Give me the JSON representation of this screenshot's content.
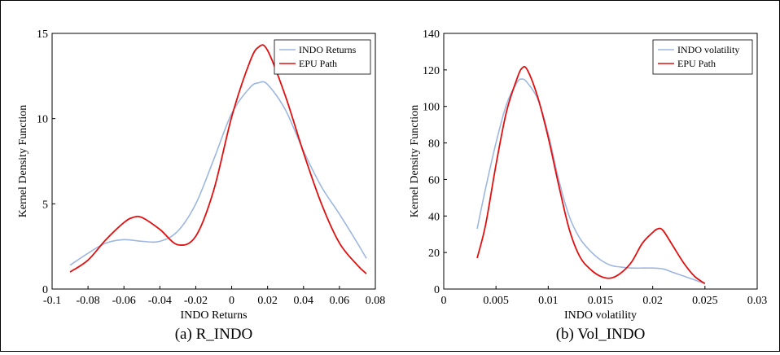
{
  "colors": {
    "series1": "#9db7e0",
    "series2": "#e01010",
    "axis": "#000000"
  },
  "chart_data": [
    {
      "type": "line",
      "caption": "(a) R_INDO",
      "xlabel": "INDO Returns",
      "ylabel": "Kernel Density Function",
      "xlim": [
        -0.1,
        0.08
      ],
      "ylim": [
        0,
        15
      ],
      "xticks": [
        -0.1,
        -0.08,
        -0.06,
        -0.04,
        -0.02,
        0,
        0.02,
        0.04,
        0.06,
        0.08
      ],
      "xtick_labels": [
        "-0.1",
        "-0.08",
        "-0.06",
        "-0.04",
        "-0.02",
        "0",
        "0.02",
        "0.04",
        "0.06",
        "0.08"
      ],
      "yticks": [
        0,
        5,
        10,
        15
      ],
      "ytick_labels": [
        "0",
        "5",
        "10",
        "15"
      ],
      "legend_position": "top-right",
      "series": [
        {
          "name": "INDO Returns",
          "color": "#9db7e0",
          "x": [
            -0.09,
            -0.08,
            -0.07,
            -0.06,
            -0.05,
            -0.04,
            -0.03,
            -0.02,
            -0.01,
            0.0,
            0.01,
            0.015,
            0.02,
            0.03,
            0.04,
            0.05,
            0.06,
            0.07,
            0.075
          ],
          "y": [
            1.4,
            2.1,
            2.7,
            2.9,
            2.8,
            2.8,
            3.4,
            5.0,
            7.6,
            10.3,
            11.8,
            12.1,
            12.0,
            10.5,
            8.1,
            6.0,
            4.4,
            2.7,
            1.8
          ]
        },
        {
          "name": "EPU Path",
          "color": "#e01010",
          "x": [
            -0.09,
            -0.08,
            -0.07,
            -0.06,
            -0.055,
            -0.05,
            -0.04,
            -0.03,
            -0.02,
            -0.01,
            0.0,
            0.01,
            0.015,
            0.02,
            0.03,
            0.04,
            0.05,
            0.06,
            0.07,
            0.075
          ],
          "y": [
            1.0,
            1.7,
            2.9,
            3.9,
            4.2,
            4.2,
            3.5,
            2.6,
            3.1,
            5.8,
            10.1,
            13.3,
            14.2,
            14.0,
            11.3,
            8.0,
            5.0,
            2.7,
            1.4,
            0.9
          ]
        }
      ]
    },
    {
      "type": "line",
      "caption": "(b) Vol_INDO",
      "xlabel": "INDO volatility",
      "ylabel": "Kernel Density Function",
      "xlim": [
        0,
        0.03
      ],
      "ylim": [
        0,
        140
      ],
      "xticks": [
        0,
        0.005,
        0.01,
        0.015,
        0.02,
        0.025,
        0.03
      ],
      "xtick_labels": [
        "0",
        "0.005",
        "0.01",
        "0.015",
        "0.02",
        "0.025",
        "0.03"
      ],
      "yticks": [
        0,
        20,
        40,
        60,
        80,
        100,
        120,
        140
      ],
      "ytick_labels": [
        "0",
        "20",
        "40",
        "60",
        "80",
        "100",
        "120",
        "140"
      ],
      "legend_position": "top-right",
      "series": [
        {
          "name": "INDO volatility",
          "color": "#9db7e0",
          "x": [
            0.0032,
            0.004,
            0.005,
            0.006,
            0.007,
            0.0075,
            0.008,
            0.009,
            0.01,
            0.011,
            0.012,
            0.013,
            0.014,
            0.015,
            0.016,
            0.017,
            0.018,
            0.019,
            0.02,
            0.021,
            0.022,
            0.023,
            0.024,
            0.025
          ],
          "y": [
            33,
            55,
            80,
            101,
            113,
            115,
            113,
            104,
            85,
            60,
            40,
            28,
            21,
            16,
            13,
            12,
            11.5,
            11.5,
            11.5,
            11,
            9,
            7,
            5,
            3
          ]
        },
        {
          "name": "EPU Path",
          "color": "#e01010",
          "x": [
            0.0032,
            0.004,
            0.005,
            0.006,
            0.007,
            0.0075,
            0.008,
            0.009,
            0.01,
            0.011,
            0.012,
            0.013,
            0.014,
            0.015,
            0.016,
            0.017,
            0.018,
            0.019,
            0.02,
            0.0205,
            0.021,
            0.022,
            0.023,
            0.024,
            0.025
          ],
          "y": [
            17,
            35,
            68,
            97,
            115,
            121,
            120,
            105,
            83,
            57,
            33,
            18,
            11,
            7,
            6,
            9,
            15,
            25,
            31,
            33,
            32,
            23,
            14,
            7,
            3
          ]
        }
      ]
    }
  ]
}
